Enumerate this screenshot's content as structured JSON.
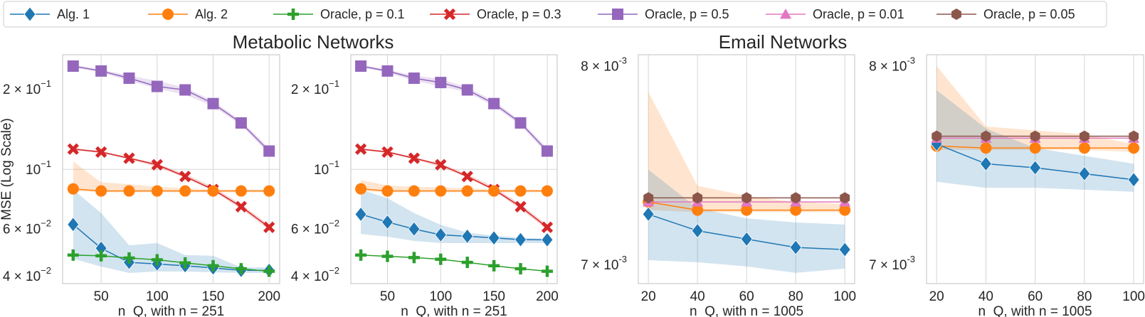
{
  "legend": {
    "placement": "top-center",
    "items": [
      {
        "label": "Alg. 1",
        "color": "#1f77b4",
        "marker": "diamond"
      },
      {
        "label": "Alg. 2",
        "color": "#ff7f0e",
        "marker": "circle"
      },
      {
        "label": "Oracle, p = 0.1",
        "color": "#2ca02c",
        "marker": "plus"
      },
      {
        "label": "Oracle, p = 0.3",
        "color": "#d62728",
        "marker": "x"
      },
      {
        "label": "Oracle, p = 0.5",
        "color": "#9467bd",
        "marker": "square"
      },
      {
        "label": "Oracle, p = 0.01",
        "color": "#e377c2",
        "marker": "triangle"
      },
      {
        "label": "Oracle, p = 0.05",
        "color": "#8c564b",
        "marker": "hexagon"
      }
    ]
  },
  "titles": {
    "metabolic": "Metabolic Networks",
    "email": "Email Networks"
  },
  "ylabel": "MSE (Log Scale)",
  "chart_data": [
    {
      "type": "line",
      "yscale": "log",
      "grid": true,
      "xlabel": "n_Q, with n = 251",
      "ylabel": "MSE (Log Scale)",
      "xlim": [
        15.6,
        209.4
      ],
      "ylim": [
        0.0374,
        0.268
      ],
      "xticks": [
        50,
        100,
        150,
        200
      ],
      "yticks": [
        {
          "value": 0.04,
          "label": "4 × 10",
          "exp": "−2"
        },
        {
          "value": 0.06,
          "label": "6 × 10",
          "exp": "−2"
        },
        {
          "value": 0.1,
          "label": "10",
          "exp": "−1",
          "grid": true
        },
        {
          "value": 0.2,
          "label": "2 × 10",
          "exp": "−1"
        }
      ],
      "x": [
        25,
        50,
        75,
        100,
        125,
        150,
        175,
        200
      ],
      "series": [
        {
          "name": "Oracle, p = 0.5",
          "values": [
            0.243,
            0.233,
            0.219,
            0.204,
            0.198,
            0.176,
            0.149,
            0.117
          ],
          "lower": [
            0.24,
            0.23,
            0.214,
            0.2,
            0.19,
            0.172,
            0.146,
            0.114
          ],
          "upper": [
            0.246,
            0.236,
            0.224,
            0.214,
            0.202,
            0.18,
            0.152,
            0.12
          ]
        },
        {
          "name": "Oracle, p = 0.3",
          "values": [
            0.119,
            0.116,
            0.11,
            0.104,
            0.094,
            0.084,
            0.0725,
            0.0607
          ],
          "lower": [
            0.118,
            0.115,
            0.109,
            0.102,
            0.093,
            0.083,
            0.071,
            0.0595
          ],
          "upper": [
            0.12,
            0.117,
            0.111,
            0.105,
            0.096,
            0.086,
            0.074,
            0.062
          ]
        },
        {
          "name": "Alg. 2",
          "values": [
            0.0845,
            0.083,
            0.083,
            0.083,
            0.083,
            0.083,
            0.083,
            0.083
          ],
          "lower": [
            0.083,
            0.082,
            0.082,
            0.082,
            0.082,
            0.082,
            0.082,
            0.082
          ],
          "upper": [
            0.107,
            0.0894,
            0.088,
            0.086,
            0.085,
            0.084,
            0.084,
            0.084
          ]
        },
        {
          "name": "Alg. 1",
          "values": [
            0.0622,
            0.0507,
            0.0449,
            0.0443,
            0.0436,
            0.0428,
            0.0419,
            0.0419
          ],
          "lower": [
            0.0463,
            0.0433,
            0.041,
            0.0415,
            0.0415,
            0.0412,
            0.041,
            0.041
          ],
          "upper": [
            0.084,
            0.0686,
            0.052,
            0.053,
            0.0478,
            0.0475,
            0.043,
            0.043
          ]
        },
        {
          "name": "Oracle, p = 0.1",
          "values": [
            0.0478,
            0.0475,
            0.0466,
            0.0459,
            0.0447,
            0.0436,
            0.0425,
            0.0416
          ]
        }
      ]
    },
    {
      "type": "line",
      "yscale": "log",
      "grid": true,
      "xlabel": "n_Q, with n = 251",
      "xlim": [
        15.6,
        209.4
      ],
      "ylim": [
        0.0374,
        0.268
      ],
      "xticks": [
        50,
        100,
        150,
        200
      ],
      "yticks": [
        {
          "value": 0.04,
          "label": "4 × 10",
          "exp": "−2"
        },
        {
          "value": 0.06,
          "label": "6 × 10",
          "exp": "−2"
        },
        {
          "value": 0.1,
          "label": "10",
          "exp": "−1",
          "grid": true
        },
        {
          "value": 0.2,
          "label": "2 × 10",
          "exp": "−1"
        }
      ],
      "x": [
        25,
        50,
        75,
        100,
        125,
        150,
        175,
        200
      ],
      "series": [
        {
          "name": "Oracle, p = 0.5",
          "values": [
            0.243,
            0.233,
            0.219,
            0.211,
            0.198,
            0.176,
            0.149,
            0.117
          ],
          "lower": [
            0.24,
            0.23,
            0.214,
            0.204,
            0.194,
            0.172,
            0.146,
            0.114
          ],
          "upper": [
            0.246,
            0.236,
            0.224,
            0.218,
            0.202,
            0.18,
            0.152,
            0.12
          ]
        },
        {
          "name": "Oracle, p = 0.3",
          "values": [
            0.119,
            0.116,
            0.11,
            0.104,
            0.094,
            0.084,
            0.0725,
            0.0607
          ],
          "lower": [
            0.118,
            0.115,
            0.109,
            0.102,
            0.093,
            0.083,
            0.071,
            0.0595
          ],
          "upper": [
            0.12,
            0.117,
            0.111,
            0.105,
            0.096,
            0.086,
            0.074,
            0.062
          ]
        },
        {
          "name": "Alg. 2",
          "values": [
            0.0845,
            0.083,
            0.083,
            0.083,
            0.083,
            0.083,
            0.083,
            0.083
          ],
          "lower": [
            0.083,
            0.082,
            0.082,
            0.082,
            0.082,
            0.082,
            0.082,
            0.082
          ],
          "upper": [
            0.0912,
            0.087,
            0.086,
            0.0855,
            0.085,
            0.084,
            0.084,
            0.084
          ]
        },
        {
          "name": "Alg. 1",
          "values": [
            0.0679,
            0.0635,
            0.0598,
            0.0569,
            0.0562,
            0.0554,
            0.0546,
            0.0545
          ],
          "lower": [
            0.0573,
            0.056,
            0.054,
            0.053,
            0.053,
            0.053,
            0.053,
            0.053
          ],
          "upper": [
            0.084,
            0.078,
            0.0686,
            0.062,
            0.058,
            0.0565,
            0.0555,
            0.055
          ]
        },
        {
          "name": "Oracle, p = 0.1",
          "values": [
            0.0478,
            0.0473,
            0.0468,
            0.0461,
            0.0449,
            0.0436,
            0.0425,
            0.0416
          ]
        }
      ]
    },
    {
      "type": "line",
      "yscale": "log",
      "grid": true,
      "xlabel": "n_Q, with n = 1005",
      "xlim": [
        15.9,
        104
      ],
      "ylim": [
        0.00691,
        0.00806
      ],
      "xticks": [
        20,
        40,
        60,
        80,
        100
      ],
      "yticks": [
        {
          "value": 0.007,
          "label": "7 × 10",
          "exp": "-3"
        },
        {
          "value": 0.008,
          "label": "8 × 10",
          "exp": "-3"
        }
      ],
      "x": [
        20,
        40,
        60,
        80,
        100
      ],
      "series": [
        {
          "name": "Alg. 2",
          "values": [
            0.0073,
            0.00726,
            0.00726,
            0.00726,
            0.00726
          ],
          "lower": [
            0.00726,
            0.00725,
            0.00725,
            0.00725,
            0.00725
          ],
          "upper": [
            0.00786,
            0.00738,
            0.00733,
            0.0073,
            0.00729
          ]
        },
        {
          "name": "Alg. 1",
          "values": [
            0.00724,
            0.00716,
            0.00712,
            0.00708,
            0.00707
          ],
          "lower": [
            0.00702,
            0.00701,
            0.00699,
            0.00696,
            0.00698
          ],
          "upper": [
            0.00746,
            0.00727,
            0.00722,
            0.0072,
            0.00719
          ]
        },
        {
          "name": "Oracle, p = 0.01",
          "values": [
            0.0073,
            0.0073,
            0.0073,
            0.0073,
            0.0073
          ]
        },
        {
          "name": "Oracle, p = 0.05",
          "values": [
            0.00732,
            0.00732,
            0.00732,
            0.00732,
            0.00732
          ]
        }
      ]
    },
    {
      "type": "line",
      "yscale": "log",
      "grid": true,
      "xlabel": "n_Q, with n = 1005",
      "xlim": [
        15.9,
        104
      ],
      "ylim": [
        0.00691,
        0.00806
      ],
      "xticks": [
        20,
        40,
        60,
        80,
        100
      ],
      "yticks": [
        {
          "value": 0.007,
          "label": "7 × 10",
          "exp": "-3"
        },
        {
          "value": 0.008,
          "label": "8 × 10",
          "exp": "-3"
        }
      ],
      "x": [
        20,
        40,
        60,
        80,
        100
      ],
      "series": [
        {
          "name": "Alg. 2",
          "values": [
            0.00758,
            0.00757,
            0.00757,
            0.00757,
            0.00757
          ],
          "lower": [
            0.00756,
            0.00756,
            0.00756,
            0.00756,
            0.00755
          ],
          "upper": [
            0.008,
            0.00768,
            0.00766,
            0.00764,
            0.00759
          ]
        },
        {
          "name": "Alg. 1",
          "values": [
            0.00759,
            0.00749,
            0.00747,
            0.00744,
            0.00741
          ],
          "lower": [
            0.0074,
            0.00737,
            0.00737,
            0.00736,
            0.00735
          ],
          "upper": [
            0.00787,
            0.00767,
            0.00757,
            0.00753,
            0.00749
          ]
        },
        {
          "name": "Oracle, p = 0.01",
          "values": [
            0.00762,
            0.00762,
            0.00762,
            0.00762,
            0.00762
          ]
        },
        {
          "name": "Oracle, p = 0.05",
          "values": [
            0.00763,
            0.00763,
            0.00763,
            0.00763,
            0.00763
          ]
        }
      ]
    }
  ]
}
